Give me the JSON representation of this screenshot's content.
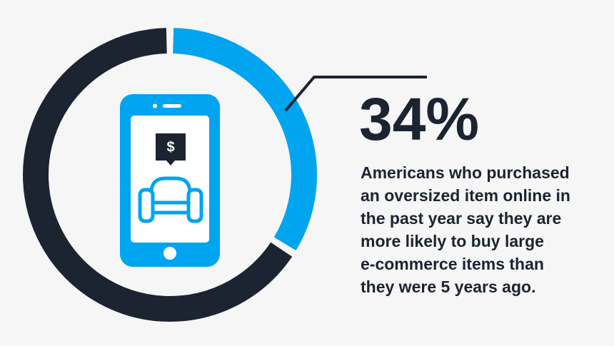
{
  "chart_data": {
    "type": "donut",
    "values": [
      34
    ],
    "value_labels": [
      "34%"
    ],
    "total": 100,
    "colors": [
      "#00a4ef"
    ],
    "track_color": "#1c2331",
    "icon_label": "$",
    "annotation_lines": [
      "Americans who purchased",
      "an oversized item online in",
      "the past year say they are",
      "more likely to buy large",
      "e-commerce items than",
      "they were 5 years ago."
    ]
  }
}
